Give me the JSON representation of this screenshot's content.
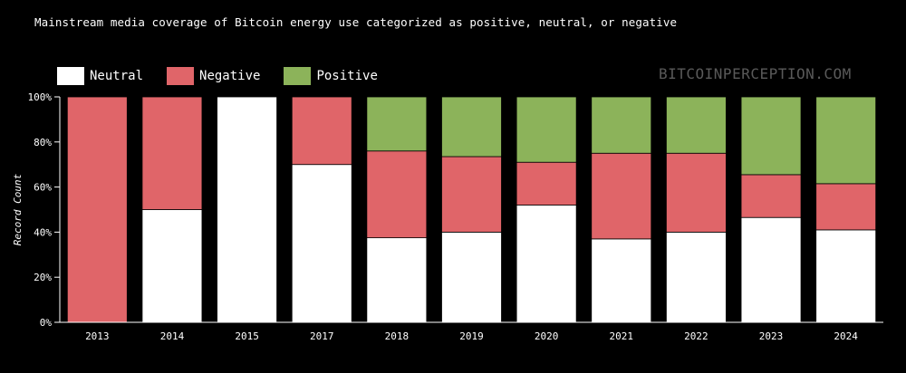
{
  "header": {
    "title": "Mainstream media coverage of Bitcoin energy use categorized as positive, neutral, or negative",
    "watermark": "BITCOINPERCEPTION.COM"
  },
  "legend": [
    {
      "label": "Neutral",
      "color": "#ffffff"
    },
    {
      "label": "Negative",
      "color": "#e06569"
    },
    {
      "label": "Positive",
      "color": "#8cb35a"
    }
  ],
  "chart_data": {
    "type": "bar",
    "stacked": true,
    "title": "Mainstream media coverage of Bitcoin energy use categorized as positive, neutral, or negative",
    "xlabel": "",
    "ylabel": "Record Count",
    "ylim": [
      0,
      100
    ],
    "y_ticks": [
      "0%",
      "20%",
      "40%",
      "60%",
      "80%",
      "100%"
    ],
    "categories": [
      "2013",
      "2014",
      "2015",
      "2017",
      "2018",
      "2019",
      "2020",
      "2021",
      "2022",
      "2023",
      "2024"
    ],
    "series": [
      {
        "name": "Neutral",
        "color": "#ffffff",
        "values": [
          0,
          50,
          100,
          70,
          37.5,
          40,
          52,
          37,
          40,
          46.5,
          41
        ]
      },
      {
        "name": "Negative",
        "color": "#e06569",
        "values": [
          100,
          50,
          0,
          30,
          38.5,
          33.5,
          19,
          38,
          35,
          19,
          20.5
        ]
      },
      {
        "name": "Positive",
        "color": "#8cb35a",
        "values": [
          0,
          0,
          0,
          0,
          24,
          26.5,
          29,
          25,
          25,
          34.5,
          38.5
        ]
      }
    ],
    "grid": false,
    "legend_position": "top-left"
  }
}
